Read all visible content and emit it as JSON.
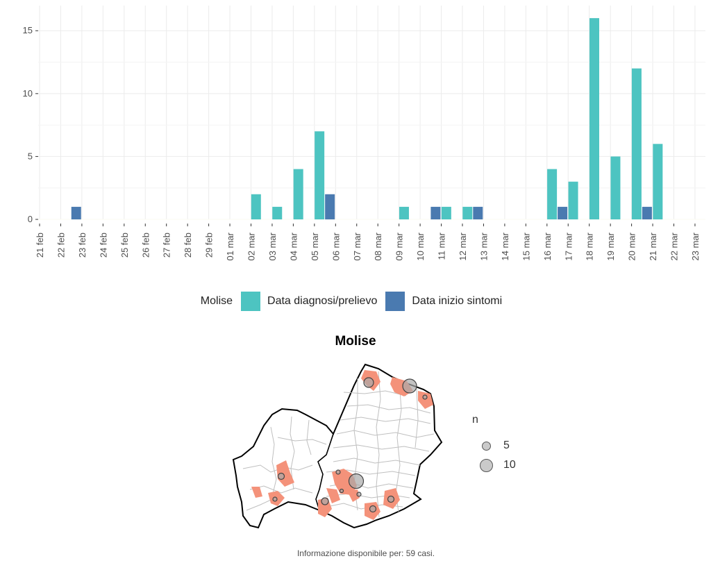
{
  "chart_data": {
    "type": "bar",
    "title": "",
    "xlabel": "",
    "ylabel": "",
    "ylim": [
      0,
      17
    ],
    "y_ticks": [
      0,
      5,
      10,
      15
    ],
    "categories": [
      "21 feb",
      "22 feb",
      "23 feb",
      "24 feb",
      "25 feb",
      "26 feb",
      "27 feb",
      "28 feb",
      "29 feb",
      "01 mar",
      "02 mar",
      "03 mar",
      "04 mar",
      "05 mar",
      "06 mar",
      "07 mar",
      "08 mar",
      "09 mar",
      "10 mar",
      "11 mar",
      "12 mar",
      "13 mar",
      "14 mar",
      "15 mar",
      "16 mar",
      "17 mar",
      "18 mar",
      "19 mar",
      "20 mar",
      "21 mar",
      "22 mar",
      "23 mar"
    ],
    "series": [
      {
        "name": "Data diagnosi/prelievo",
        "color": "#4dc4c1",
        "values": [
          0,
          0,
          0,
          0,
          0,
          0,
          0,
          0,
          0,
          0,
          2,
          1,
          4,
          7,
          0,
          0,
          0,
          1,
          0,
          1,
          1,
          0,
          0,
          0,
          4,
          3,
          16,
          5,
          12,
          6,
          0,
          0
        ]
      },
      {
        "name": "Data inizio sintomi",
        "color": "#4a7ab0",
        "values": [
          0,
          1,
          0,
          0,
          0,
          0,
          0,
          0,
          0,
          0,
          0,
          0,
          0,
          2,
          0,
          0,
          0,
          0,
          1,
          0,
          1,
          0,
          0,
          0,
          1,
          0,
          0,
          0,
          1,
          0,
          0,
          0
        ]
      }
    ],
    "legend_position": "bottom",
    "grid": true
  },
  "legend": {
    "title": "Molise",
    "items": [
      {
        "label": "Data diagnosi/prelievo",
        "color": "#4dc4c1"
      },
      {
        "label": "Data inizio sintomi",
        "color": "#4a7ab0"
      }
    ]
  },
  "map": {
    "title": "Molise",
    "fill_color": "#f4927a",
    "size_legend": {
      "title": "n",
      "items": [
        {
          "label": "5",
          "value": 5
        },
        {
          "label": "10",
          "value": 10
        }
      ]
    },
    "caption": "Informazione disponibile per: 59 casi."
  }
}
